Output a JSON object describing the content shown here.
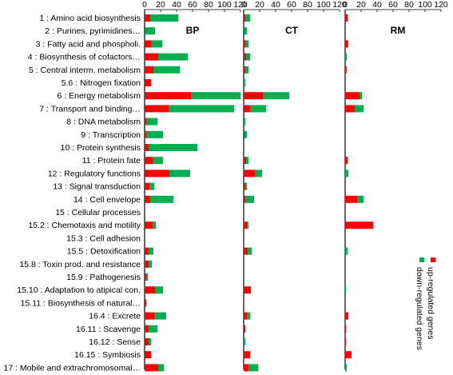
{
  "chart_data": {
    "type": "bar",
    "orientation": "horizontal",
    "stacked": true,
    "categories": [
      "1 : Amino acid biosynthesis",
      "2 : Purines, pyrimidines…",
      "3 : Fatty acid and phospholi.",
      "4 : Biosynthesis of cofactors…",
      "5 : Central interm. metabolism",
      "5.6 : Nitrogen fixation",
      "6 : Energy metabolism",
      "7 : Transport and binding…",
      "8 : DNA metabolism",
      "9 : Transcription",
      "10 : Protein synthesis",
      "11 : Protein fate",
      "12 : Regulatory functions",
      "13 : Signal transduction",
      "14 : Cell envelope",
      "15 : Cellular processes",
      "15.2 : Chemotaxis and motility",
      "15.3 : Cell adhesion",
      "15.5 : Detoxification",
      "15.8 : Toxin prod. and resistance",
      "15.9 : Pathogenesis",
      "15.10 : Adaptation to atipical con.",
      "15.11 : Biosynthesis of natural…",
      "16.4 : Excrete",
      "16.11 : Scavenge",
      "16.12 : Sense",
      "16.15 : Symbiosis",
      "17 : Mobile and extrachromosomal…"
    ],
    "panels": [
      {
        "title": "BP",
        "xlim": [
          0,
          120
        ],
        "ticks": [
          0,
          20,
          40,
          60,
          80,
          100,
          120
        ],
        "series": [
          {
            "name": "up-regulated genes",
            "color": "#ff0000",
            "values": [
              7,
              1,
              8,
              17,
              11,
              8,
              58,
              30,
              2,
              2,
              5,
              10,
              31,
              6,
              7,
              0,
              10,
              0,
              5,
              5,
              2,
              13,
              2,
              12,
              5,
              5,
              8,
              17
            ]
          },
          {
            "name": "down-regulated genes",
            "color": "#00b050",
            "values": [
              35,
              12,
              14,
              37,
              33,
              0,
              62,
              82,
              14,
              21,
              61,
              13,
              26,
              6,
              29,
              0,
              4,
              0,
              6,
              4,
              2,
              10,
              0,
              15,
              11,
              3,
              0,
              7
            ]
          }
        ]
      },
      {
        "title": "CT",
        "xlim": [
          0,
          120
        ],
        "ticks": [
          0,
          20,
          40,
          60,
          80,
          100,
          120
        ],
        "series": [
          {
            "name": "up-regulated genes",
            "color": "#ff0000",
            "values": [
              2,
              1,
              2,
              3,
              2,
              0,
              24,
              8,
              0,
              1,
              0,
              3,
              14,
              2,
              2,
              0,
              4,
              0,
              5,
              0,
              0,
              9,
              0,
              4,
              2,
              0,
              8,
              6
            ]
          },
          {
            "name": "down-regulated genes",
            "color": "#00b050",
            "values": [
              6,
              3,
              4,
              5,
              4,
              2,
              33,
              20,
              2,
              3,
              0,
              3,
              9,
              2,
              11,
              0,
              2,
              0,
              5,
              0,
              0,
              0,
              0,
              4,
              0,
              2,
              0,
              12
            ]
          }
        ]
      },
      {
        "title": "RM",
        "xlim": [
          0,
          120
        ],
        "ticks": [
          0,
          20,
          40,
          60,
          80,
          100,
          120
        ],
        "series": [
          {
            "name": "up-regulated genes",
            "color": "#ff0000",
            "values": [
              3,
              0,
              3,
              0,
              1,
              0,
              18,
              12,
              0,
              0,
              0,
              3,
              0,
              0,
              15,
              0,
              35,
              0,
              0,
              0,
              0,
              0,
              0,
              4,
              1,
              1,
              8,
              0
            ]
          },
          {
            "name": "down-regulated genes",
            "color": "#00b050",
            "values": [
              0,
              0,
              1,
              2,
              1,
              0,
              3,
              11,
              0,
              0,
              0,
              0,
              4,
              0,
              8,
              0,
              0,
              0,
              3,
              0,
              0,
              1,
              0,
              0,
              0,
              0,
              0,
              2
            ]
          }
        ]
      }
    ],
    "legend": {
      "placement": "right, rotated vertical",
      "items": [
        {
          "label": "up-regulated genes",
          "color": "#ff0000"
        },
        {
          "label": "down-regulated genes",
          "color": "#00b050"
        }
      ]
    },
    "grid": false
  }
}
